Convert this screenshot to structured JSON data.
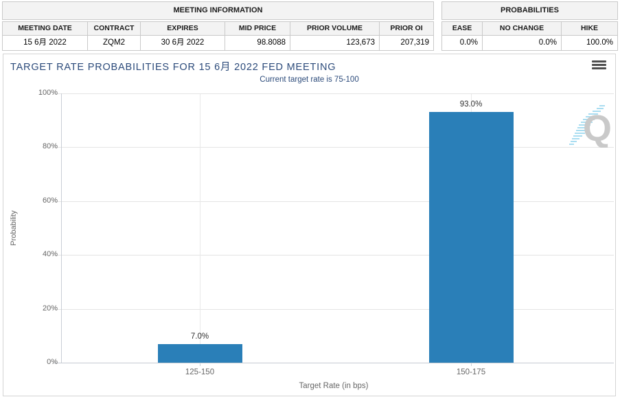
{
  "meeting_information": {
    "title": "MEETING INFORMATION",
    "columns": [
      "MEETING DATE",
      "CONTRACT",
      "EXPIRES",
      "MID PRICE",
      "PRIOR VOLUME",
      "PRIOR OI"
    ],
    "row": [
      "15 6月 2022",
      "ZQM2",
      "30 6月 2022",
      "98.8088",
      "123,673",
      "207,319"
    ]
  },
  "probabilities": {
    "title": "PROBABILITIES",
    "columns": [
      "EASE",
      "NO CHANGE",
      "HIKE"
    ],
    "row": [
      "0.0%",
      "0.0%",
      "100.0%"
    ]
  },
  "chart": {
    "menu_icon": "hamburger-icon",
    "watermark_letter": "Q"
  },
  "chart_data": {
    "type": "bar",
    "title": "TARGET RATE PROBABILITIES FOR 15 6月 2022 FED MEETING",
    "subtitle": "Current target rate is 75-100",
    "categories": [
      "125-150",
      "150-175"
    ],
    "values": [
      7.0,
      93.0
    ],
    "data_labels": [
      "7.0%",
      "93.0%"
    ],
    "xlabel": "Target Rate (in bps)",
    "ylabel": "Probability",
    "ylim": [
      0,
      100
    ],
    "yticks_top_to_bottom": [
      "100%",
      "80%",
      "60%",
      "40%",
      "20%",
      "0%"
    ],
    "grid": true,
    "legend": false,
    "bar_color": "#2a7fb8"
  },
  "colors": {
    "bar": "#2a7fb8",
    "title_text": "#2b4a7a",
    "axis_text": "#666666",
    "table_header_bg": "#f3f3f3",
    "table_border": "#c9c9c9"
  }
}
